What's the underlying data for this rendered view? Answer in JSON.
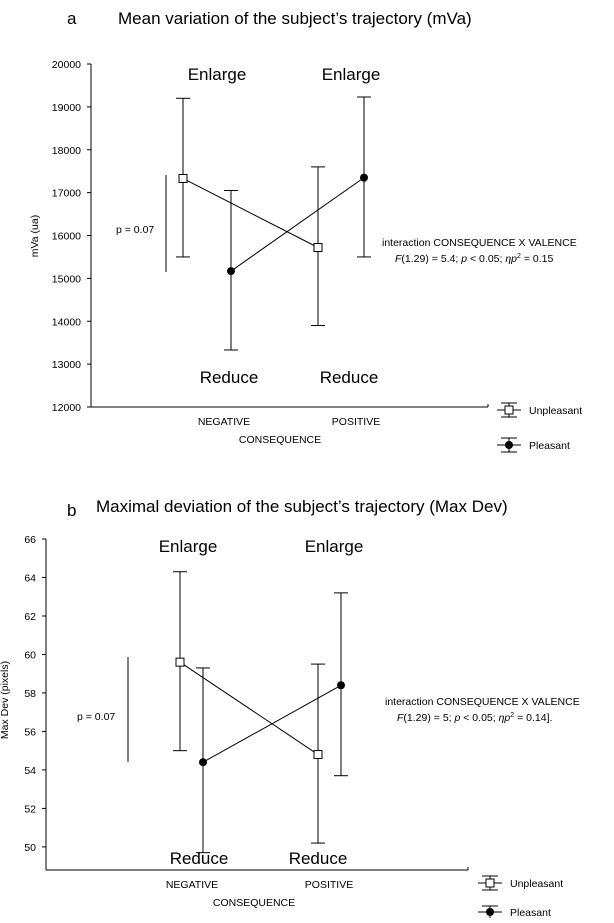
{
  "chart_data": [
    {
      "type": "line",
      "panel_letter": "a",
      "title": "Mean variation of the subject’s trajectory (mVa)",
      "xlabel": "CONSEQUENCE",
      "ylabel": "mVa (ua)",
      "categories": [
        "NEGATIVE",
        "POSITIVE"
      ],
      "ylim": [
        12000,
        20000
      ],
      "yticks": [
        12000,
        13000,
        14000,
        15000,
        16000,
        17000,
        18000,
        19000,
        20000
      ],
      "series": [
        {
          "name": "Unpleasant",
          "values": [
            17330,
            15720
          ],
          "err_low": [
            15500,
            13900
          ],
          "err_high": [
            19200,
            17600
          ],
          "marker": "open-square"
        },
        {
          "name": "Pleasant",
          "values": [
            15170,
            17350
          ],
          "err_low": [
            13330,
            15500
          ],
          "err_high": [
            17050,
            19230
          ],
          "marker": "filled-circle"
        }
      ],
      "annotations": {
        "enlarge_label": "Enlarge",
        "reduce_label": "Reduce",
        "p_label": "p = 0.07",
        "stat_line1": "interaction CONSEQUENCE X VALENCE",
        "stat_line2_a": "F",
        "stat_line2_b": "(1.29) = 5.4; ",
        "stat_line2_c": "p",
        "stat_line2_d": " < 0.05; ",
        "stat_line2_e": "ηp",
        "stat_line2_f": "2",
        "stat_line2_g": " = 0.15"
      },
      "legend": {
        "placement": "bottom-right",
        "entries": [
          "Unpleasant",
          "Pleasant"
        ]
      }
    },
    {
      "type": "line",
      "panel_letter": "b",
      "title": "Maximal deviation of the subject’s trajectory (Max Dev)",
      "xlabel": "CONSEQUENCE",
      "ylabel": "Max Dev (pixels)",
      "categories": [
        "NEGATIVE",
        "POSITIVE"
      ],
      "ylim": [
        48.8,
        66
      ],
      "yticks": [
        50,
        52,
        54,
        56,
        58,
        60,
        62,
        64,
        66
      ],
      "series": [
        {
          "name": "Unpleasant",
          "values": [
            59.6,
            54.8
          ],
          "err_low": [
            55.0,
            50.2
          ],
          "err_high": [
            64.3,
            59.5
          ],
          "marker": "open-square"
        },
        {
          "name": "Pleasant",
          "values": [
            54.4,
            58.4
          ],
          "err_low": [
            49.7,
            53.7
          ],
          "err_high": [
            59.3,
            63.2
          ],
          "marker": "filled-circle"
        }
      ],
      "annotations": {
        "enlarge_label": "Enlarge",
        "reduce_label": "Reduce",
        "p_label": "p = 0.07",
        "stat_line1": "interaction CONSEQUENCE X VALENCE",
        "stat_line2_a": "F",
        "stat_line2_b": "(1.29) = 5; ",
        "stat_line2_c": "p",
        "stat_line2_d": " < 0.05; ",
        "stat_line2_e": "ηp",
        "stat_line2_f": "2",
        "stat_line2_g": " = 0.14]."
      },
      "legend": {
        "placement": "bottom-right",
        "entries": [
          "Unpleasant",
          "Pleasant"
        ]
      }
    }
  ]
}
